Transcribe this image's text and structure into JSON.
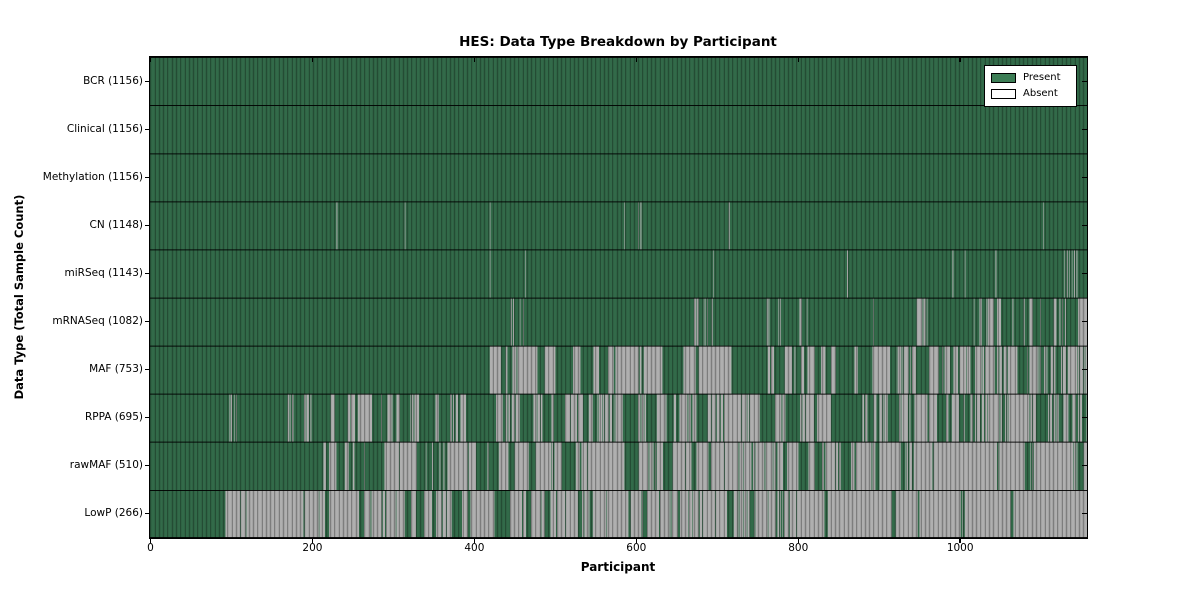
{
  "chart_data": {
    "type": "heatmap",
    "title": "HES: Data Type Breakdown by Participant",
    "xlabel": "Participant",
    "ylabel": "Data Type (Total Sample Count)",
    "x_ticks": [
      0,
      200,
      400,
      600,
      800,
      1000
    ],
    "xlim": [
      0,
      1156
    ],
    "n_participants": 1156,
    "grid": false,
    "legend": {
      "position": "upper right",
      "entries": [
        {
          "label": "Present",
          "color": "#3c7d55"
        },
        {
          "label": "Absent",
          "color": "#ffffff"
        }
      ]
    },
    "colors": {
      "present_fill": "#3a7a54",
      "absent_fill": "#c9c9c9",
      "bar_edge": "rgba(0,0,0,0.5)",
      "row_border": "rgba(0,0,0,0.9)"
    },
    "rows": [
      {
        "label": "BCR (1156)",
        "name": "BCR",
        "total": 1156,
        "segments": [
          {
            "start": 0,
            "end": 1156,
            "present": 1156
          }
        ]
      },
      {
        "label": "Clinical (1156)",
        "name": "Clinical",
        "total": 1156,
        "segments": [
          {
            "start": 0,
            "end": 1156,
            "present": 1156
          }
        ]
      },
      {
        "label": "Methylation (1156)",
        "name": "Methylation",
        "total": 1156,
        "segments": [
          {
            "start": 0,
            "end": 1156,
            "present": 1156
          }
        ]
      },
      {
        "label": "CN (1148)",
        "name": "CN",
        "total": 1148,
        "segments": [
          {
            "start": 0,
            "end": 1156,
            "present": 1156
          }
        ],
        "absent_at": [
          230,
          314,
          419,
          585,
          602,
          605,
          714,
          1102
        ]
      },
      {
        "label": "miRSeq (1143)",
        "name": "miRSeq",
        "total": 1143,
        "segments": [
          {
            "start": 0,
            "end": 1156,
            "present": 1156
          }
        ],
        "absent_at": [
          419,
          463,
          695,
          860,
          990,
          1005,
          1043,
          1128,
          1131,
          1134,
          1137,
          1140,
          1143
        ]
      },
      {
        "label": "mRNASeq (1082)",
        "name": "mRNASeq",
        "total": 1082,
        "segments": [
          {
            "start": 0,
            "end": 420,
            "present": 420
          },
          {
            "start": 420,
            "end": 470,
            "present": 46
          },
          {
            "start": 470,
            "end": 800,
            "present": 317
          },
          {
            "start": 800,
            "end": 1000,
            "present": 184
          },
          {
            "start": 1000,
            "end": 1146,
            "present": 115
          },
          {
            "start": 1146,
            "end": 1156,
            "present": 0
          }
        ]
      },
      {
        "label": "MAF (753)",
        "name": "MAF",
        "total": 753,
        "segments": [
          {
            "start": 0,
            "end": 410,
            "present": 410
          },
          {
            "start": 410,
            "end": 900,
            "present": 245
          },
          {
            "start": 900,
            "end": 1156,
            "present": 98
          }
        ]
      },
      {
        "label": "RPPA (695)",
        "name": "RPPA",
        "total": 695,
        "segments": [
          {
            "start": 0,
            "end": 93,
            "present": 93
          },
          {
            "start": 93,
            "end": 205,
            "present": 97
          },
          {
            "start": 205,
            "end": 600,
            "present": 245
          },
          {
            "start": 600,
            "end": 900,
            "present": 150
          },
          {
            "start": 900,
            "end": 1156,
            "present": 110
          }
        ]
      },
      {
        "label": "rawMAF (510)",
        "name": "rawMAF",
        "total": 510,
        "segments": [
          {
            "start": 0,
            "end": 211,
            "present": 211
          },
          {
            "start": 211,
            "end": 600,
            "present": 175
          },
          {
            "start": 600,
            "end": 900,
            "present": 90
          },
          {
            "start": 900,
            "end": 1156,
            "present": 34
          }
        ]
      },
      {
        "label": "LowP (266)",
        "name": "LowP",
        "total": 266,
        "segments": [
          {
            "start": 0,
            "end": 84,
            "present": 84
          },
          {
            "start": 84,
            "end": 500,
            "present": 104
          },
          {
            "start": 500,
            "end": 800,
            "present": 60
          },
          {
            "start": 800,
            "end": 1156,
            "present": 18
          }
        ]
      }
    ]
  }
}
